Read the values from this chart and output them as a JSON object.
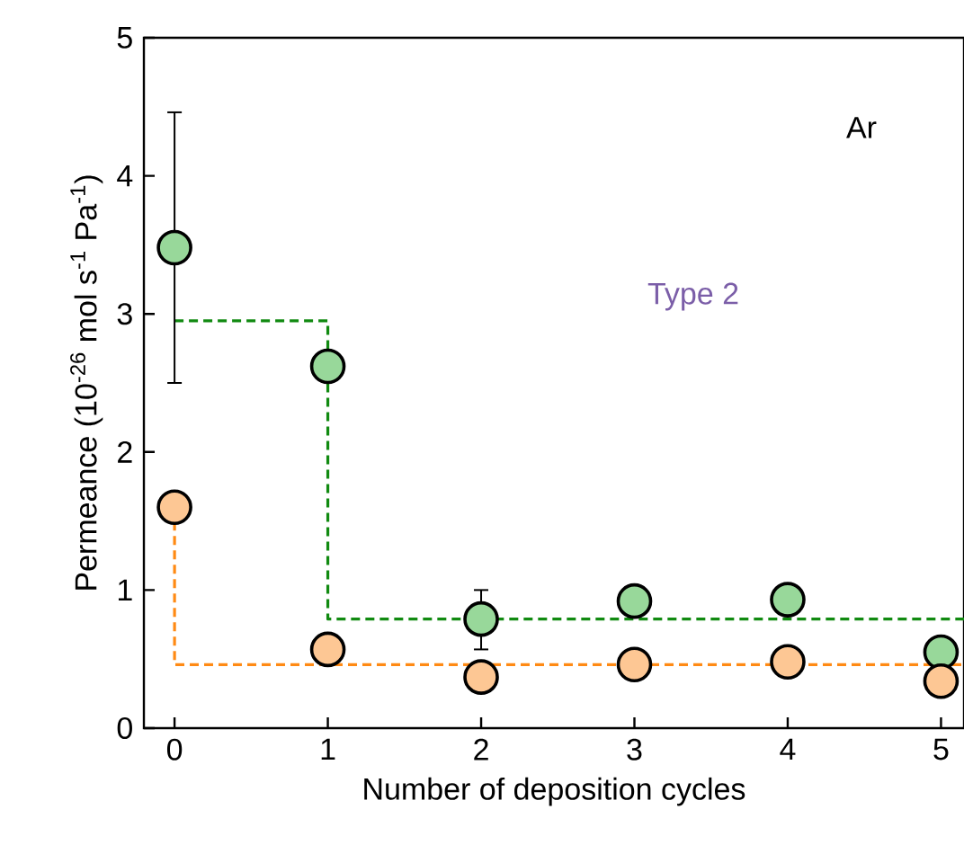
{
  "chart_data": {
    "type": "scatter",
    "xlabel": "Number of deposition cycles",
    "ylabel": "Permeance (10$^{-26}$ mol s$^{-1}$ Pa$^{-1}$)",
    "annotations": [
      "Ar",
      "Type 2"
    ],
    "xlim": [
      -0.2,
      5.15
    ],
    "xticks": [
      0,
      1,
      2,
      3,
      4,
      5
    ],
    "ylim": [
      0,
      5
    ],
    "yticks": [
      0,
      1,
      2,
      3,
      4,
      5
    ],
    "grid": false,
    "series": [
      {
        "type": "line",
        "line_style": "dashed",
        "marker": "none",
        "color": "#118a11",
        "x": [
          0,
          1,
          1,
          5.15
        ],
        "values": [
          2.95,
          2.95,
          0.79,
          0.79
        ]
      },
      {
        "type": "line",
        "line_style": "dashed",
        "marker": "none",
        "color": "#ff8a14",
        "x": [
          0,
          0,
          5.15
        ],
        "values": [
          1.6,
          0.46,
          0.46
        ]
      },
      {
        "marker": "circle",
        "color": "#98d89a",
        "x": [
          0,
          1,
          2,
          3,
          4,
          5
        ],
        "values": [
          3.48,
          2.62,
          0.79,
          0.92,
          0.93,
          0.55
        ],
        "errors": [
          [
            2.5,
            4.46
          ],
          null,
          [
            0.57,
            1.0
          ],
          null,
          null,
          null
        ]
      },
      {
        "marker": "circle",
        "color": "#fdc794",
        "x": [
          0,
          1,
          2,
          3,
          4,
          5
        ],
        "values": [
          1.6,
          0.57,
          0.37,
          0.46,
          0.48,
          0.34
        ]
      }
    ]
  }
}
